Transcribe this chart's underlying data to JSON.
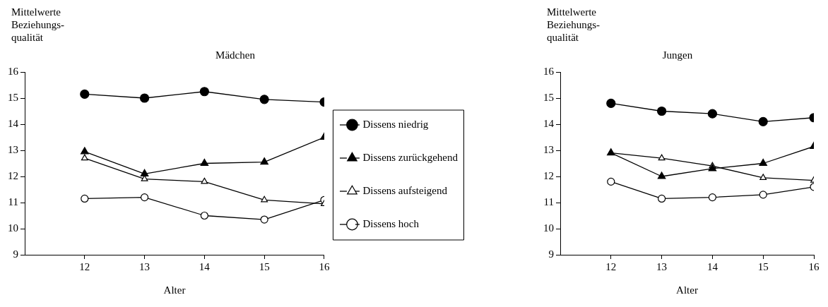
{
  "chart_data": [
    {
      "type": "line",
      "title": "Mädchen",
      "ylabel": "Mittelwerte\nBeziehungs-\nqualität",
      "xlabel": "Alter",
      "x": [
        12,
        13,
        14,
        15,
        16
      ],
      "xlim": [
        11,
        16
      ],
      "xticks": [
        12,
        13,
        14,
        15,
        16
      ],
      "ylim": [
        9,
        16
      ],
      "yticks": [
        9,
        10,
        11,
        12,
        13,
        14,
        15,
        16
      ],
      "grid": false,
      "legend": "right",
      "series": [
        {
          "name": "Dissens niedrig",
          "color": "#000000",
          "marker": "circle",
          "values": [
            15.15,
            15.0,
            15.25,
            14.95,
            14.85
          ]
        },
        {
          "name": "Dissens zurückgehend",
          "color": "#000000",
          "marker": "triangle",
          "values": [
            12.95,
            12.1,
            12.5,
            12.55,
            13.5
          ]
        },
        {
          "name": "Dissens aufsteigend",
          "color": "#000000",
          "colors": [
            "#ffffff",
            "#ffffff",
            "#ffffff",
            "#ffffff",
            "#ffffff"
          ],
          "marker": "triangle",
          "values": [
            12.7,
            11.9,
            11.8,
            11.1,
            10.95
          ]
        },
        {
          "name": "Dissens hoch",
          "color": "#000000",
          "colors": [
            "#ffffff",
            "#ffffff",
            "#ffffff",
            "#ffffff",
            "#ffffff"
          ],
          "marker": "circle",
          "values": [
            11.15,
            11.2,
            10.5,
            10.35,
            11.1
          ]
        }
      ]
    },
    {
      "type": "line",
      "title": "Jungen",
      "ylabel": "Mittelwerte\nBeziehungs-\nqualität",
      "xlabel": "Alter",
      "x": [
        12,
        13,
        14,
        15,
        16
      ],
      "xlim": [
        11,
        16
      ],
      "xticks": [
        12,
        13,
        14,
        15,
        16
      ],
      "ylim": [
        9,
        16
      ],
      "yticks": [
        9,
        10,
        11,
        12,
        13,
        14,
        15,
        16
      ],
      "grid": false,
      "legend": false,
      "series": [
        {
          "color": "#000000",
          "marker": "circle",
          "values": [
            14.8,
            14.5,
            14.4,
            14.1,
            14.25
          ]
        },
        {
          "color": "#000000",
          "marker": "triangle",
          "values": [
            12.9,
            12.0,
            12.3,
            12.5,
            13.15
          ]
        },
        {
          "color": "#000000",
          "colors": [
            "#ffffff",
            "#ffffff",
            "#ffffff",
            "#ffffff",
            "#ffffff"
          ],
          "marker": "triangle",
          "values": [
            12.9,
            12.7,
            12.4,
            11.95,
            11.85
          ]
        },
        {
          "color": "#000000",
          "colors": [
            "#ffffff",
            "#ffffff",
            "#ffffff",
            "#ffffff",
            "#ffffff"
          ],
          "marker": "circle",
          "values": [
            11.8,
            11.15,
            11.2,
            11.3,
            11.6
          ]
        }
      ]
    }
  ]
}
